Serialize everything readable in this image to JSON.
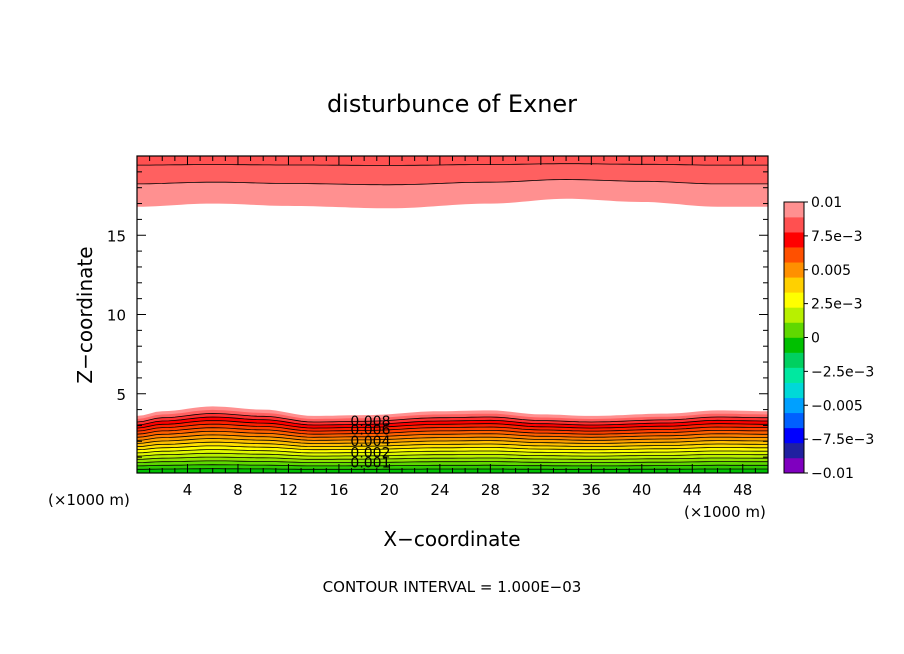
{
  "chart_data": {
    "type": "contour",
    "title": "disturbunce of Exner",
    "xlabel": "X−coordinate",
    "ylabel": "Z−coordinate",
    "x_unit": "(×1000 m)",
    "y_unit": "(×1000 m)",
    "xlim": [
      0,
      50
    ],
    "ylim": [
      0,
      20
    ],
    "x_ticks": [
      4,
      8,
      12,
      16,
      20,
      24,
      28,
      32,
      36,
      40,
      44,
      48
    ],
    "x_tick_labels": [
      "4",
      "8",
      "12",
      "16",
      "20",
      "24",
      "28",
      "32",
      "36",
      "40",
      "44",
      "48"
    ],
    "y_ticks": [
      5,
      10,
      15
    ],
    "y_tick_labels": [
      "5",
      "10",
      "15"
    ],
    "contour_interval": 0.001,
    "footer": "CONTOUR INTERVAL = 1.000E−03",
    "contour_labels": [
      "0.008",
      "0.006",
      "0.004",
      "0.002",
      "0.001"
    ],
    "colorbar": {
      "min": -0.01,
      "max": 0.01,
      "tick_labels": [
        "0.01",
        "7.5e−3",
        "0.005",
        "2.5e−3",
        "0",
        "−2.5e−3",
        "−0.005",
        "−7.5e−3",
        "−0.01"
      ],
      "colors": [
        "#7f00bf",
        "#2020a0",
        "#0000ff",
        "#0060ff",
        "#00a0ff",
        "#00d8d8",
        "#00e8a0",
        "#00d060",
        "#00c000",
        "#60d800",
        "#b8f000",
        "#ffff00",
        "#ffd000",
        "#ff9000",
        "#ff5000",
        "#ff0000",
        "#ff5050",
        "#ff9090"
      ]
    },
    "bottom_band_levels": [
      0.0005,
      0.001,
      0.0015,
      0.002,
      0.0025,
      0.003,
      0.0035,
      0.004,
      0.0045,
      0.005,
      0.0055,
      0.006,
      0.0065,
      0.007,
      0.0075,
      0.008,
      0.0085,
      0.009
    ],
    "bottom_band_colors": [
      "#00c000",
      "#30cc00",
      "#60d800",
      "#90e400",
      "#b8f000",
      "#e0f800",
      "#ffff00",
      "#ffe000",
      "#ffc000",
      "#ffa000",
      "#ff8000",
      "#ff6000",
      "#ff4000",
      "#ff2000",
      "#ff0000",
      "#ff3030",
      "#ff6060",
      "#ff9090"
    ],
    "bottom_band_top_z": [
      3.6,
      3.9,
      4.2,
      4.0,
      3.6,
      3.65,
      3.9,
      3.95,
      3.7,
      3.6,
      3.75,
      3.95,
      3.9
    ],
    "bottom_band_x": [
      0,
      2,
      6,
      10,
      14,
      18,
      24,
      28,
      32,
      36,
      42,
      46,
      50
    ],
    "top_band_x": [
      0,
      6,
      12,
      20,
      28,
      34,
      40,
      46,
      50
    ],
    "top_band_bottom_z": [
      16.8,
      17.0,
      16.85,
      16.7,
      17.0,
      17.3,
      17.1,
      16.8,
      16.8
    ],
    "top_band_colors": [
      "#ff9090",
      "#ff6060",
      "#ff5050"
    ],
    "top_band_levels": [
      0.009,
      0.0095,
      0.01
    ]
  }
}
